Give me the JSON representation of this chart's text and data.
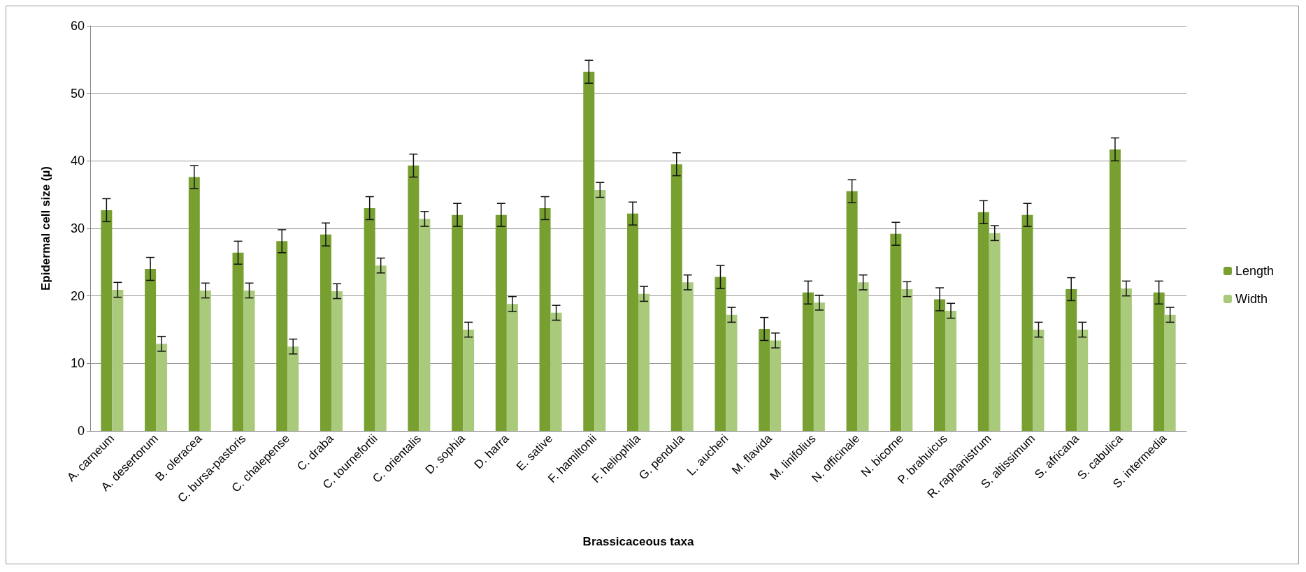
{
  "chart_data": {
    "type": "bar",
    "xlabel": "Brassicaceous taxa",
    "ylabel": "Epidermal cell size (µ)",
    "categories": [
      "A. carneum",
      "A. desertorum",
      "B. oleracea",
      "C. bursa-pastoris",
      "C. chalepense",
      "C. draba",
      "C. tournefortii",
      "C. orientalis",
      "D. sophia",
      "D. harra",
      "E. sative",
      "F. hamiltonii",
      "F. heliophila",
      "G. pendula",
      "L. aucheri",
      "M. flavida",
      "M. linifolius",
      "N. officinale",
      "N. bicorne",
      "P. brahuicus",
      "R. raphanistrum",
      "S. altissimum",
      "S. africana",
      "S. cabulica",
      "S. intermedia"
    ],
    "series": [
      {
        "name": "Length",
        "color": "#77a030",
        "values": [
          32.7,
          24,
          37.6,
          26.4,
          28.1,
          29.1,
          33,
          39.3,
          32,
          32,
          33,
          53.2,
          32.2,
          39.5,
          22.8,
          15.1,
          20.5,
          35.5,
          29.2,
          19.5,
          32.4,
          32,
          21,
          41.7,
          20.5
        ],
        "errors": [
          1.7,
          1.7,
          1.7,
          1.7,
          1.7,
          1.7,
          1.7,
          1.7,
          1.7,
          1.7,
          1.7,
          1.7,
          1.7,
          1.7,
          1.7,
          1.7,
          1.7,
          1.7,
          1.7,
          1.7,
          1.7,
          1.7,
          1.7,
          1.7,
          1.7
        ]
      },
      {
        "name": "Width",
        "color": "#a9c97b",
        "values": [
          20.9,
          12.9,
          20.8,
          20.8,
          12.5,
          20.7,
          24.5,
          31.4,
          15,
          18.8,
          17.5,
          35.7,
          20.3,
          22,
          17.2,
          13.4,
          19,
          22,
          21,
          17.8,
          29.3,
          15,
          15,
          21.1,
          17.2
        ],
        "errors": [
          1.1,
          1.1,
          1.1,
          1.1,
          1.1,
          1.1,
          1.1,
          1.1,
          1.1,
          1.1,
          1.1,
          1.1,
          1.1,
          1.1,
          1.1,
          1.1,
          1.1,
          1.1,
          1.1,
          1.1,
          1.1,
          1.1,
          1.1,
          1.1,
          1.1
        ]
      }
    ],
    "ylim": [
      0,
      60
    ],
    "yticks": [
      0,
      10,
      20,
      30,
      40,
      50,
      60
    ],
    "grid": "y",
    "legend": "right"
  }
}
